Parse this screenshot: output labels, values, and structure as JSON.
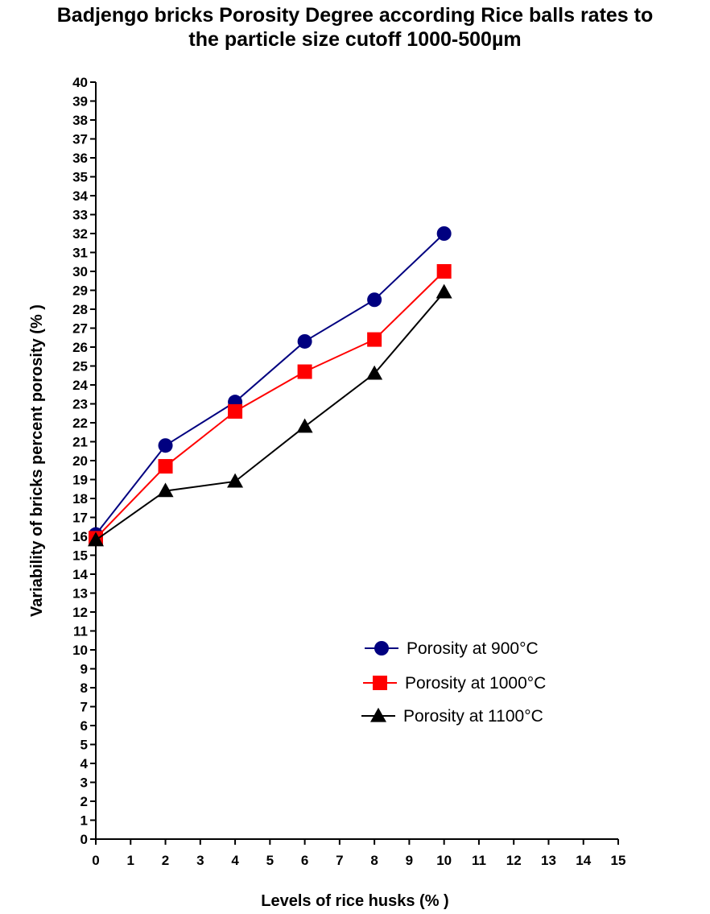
{
  "chart_data": {
    "type": "line",
    "title_line1": "Badjengo bricks Porosity Degree according Rice balls rates to",
    "title_line2": "the particle size cutoff 1000-500µm",
    "xlabel": "Levels of rice husks (% )",
    "ylabel": "Variability of bricks percent porosity (% )",
    "xlim": [
      0,
      15
    ],
    "ylim": [
      0,
      40
    ],
    "x_ticks": [
      0,
      1,
      2,
      3,
      4,
      5,
      6,
      7,
      8,
      9,
      10,
      11,
      12,
      13,
      14,
      15
    ],
    "y_ticks": [
      0,
      1,
      2,
      3,
      4,
      5,
      6,
      7,
      8,
      9,
      10,
      11,
      12,
      13,
      14,
      15,
      16,
      17,
      18,
      19,
      20,
      21,
      22,
      23,
      24,
      25,
      26,
      27,
      28,
      29,
      30,
      31,
      32,
      33,
      34,
      35,
      36,
      37,
      38,
      39,
      40
    ],
    "grid": false,
    "legend_position": "bottom-right",
    "x": [
      0,
      2,
      4,
      6,
      8,
      10
    ],
    "series": [
      {
        "name": "Porosity at 900°C",
        "values": [
          16.1,
          20.8,
          23.1,
          26.3,
          28.5,
          32.0
        ],
        "color": "#000080",
        "marker": "circle"
      },
      {
        "name": "Porosity at 1000°C",
        "values": [
          15.9,
          19.7,
          22.6,
          24.7,
          26.4,
          30.0
        ],
        "color": "#ff0000",
        "marker": "square"
      },
      {
        "name": "Porosity at 1100°C",
        "values": [
          15.8,
          18.4,
          18.9,
          21.8,
          24.6,
          28.9
        ],
        "color": "#000000",
        "marker": "triangle"
      }
    ]
  }
}
